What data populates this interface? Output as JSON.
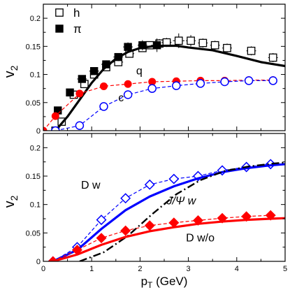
{
  "chart_data": [
    {
      "type": "scatter",
      "panel": "top",
      "xlim": [
        0,
        5
      ],
      "ylim": [
        0,
        0.225
      ],
      "x_ticks": [
        0,
        1,
        2,
        3,
        4,
        5
      ],
      "y_ticks": [
        0,
        0.05,
        0.1,
        0.15,
        0.2
      ],
      "y_tick_labels": [
        "0",
        "0.05",
        "0.1",
        "0.15",
        "0.2"
      ],
      "ylabel_main": "v",
      "ylabel_sub": "2",
      "grid": false,
      "legend_position": "top-left",
      "legend": [
        {
          "label": "h",
          "marker": "open-square"
        },
        {
          "label": "π",
          "marker": "filled-square"
        }
      ],
      "annotations": [
        {
          "text": "q",
          "x": 1.92,
          "y": 0.1
        },
        {
          "text": "c",
          "x": 1.55,
          "y": 0.052
        }
      ],
      "series": [
        {
          "name": "h",
          "style": "points",
          "marker": "open-square",
          "color": "#000000",
          "points": [
            {
              "x": 0.25,
              "y": 0.0,
              "ex": 0.05,
              "ey": 0.002
            },
            {
              "x": 0.38,
              "y": 0.016,
              "ex": 0.05,
              "ey": 0.003
            },
            {
              "x": 0.63,
              "y": 0.064,
              "ex": 0.07,
              "ey": 0.005
            },
            {
              "x": 0.85,
              "y": 0.083,
              "ex": 0.07,
              "ey": 0.005
            },
            {
              "x": 1.05,
              "y": 0.1,
              "ex": 0.08,
              "ey": 0.006
            },
            {
              "x": 1.3,
              "y": 0.113,
              "ex": 0.08,
              "ey": 0.006
            },
            {
              "x": 1.55,
              "y": 0.122,
              "ex": 0.1,
              "ey": 0.006
            },
            {
              "x": 1.78,
              "y": 0.137,
              "ex": 0.1,
              "ey": 0.006
            },
            {
              "x": 2.05,
              "y": 0.147,
              "ex": 0.1,
              "ey": 0.007
            },
            {
              "x": 2.2,
              "y": 0.152,
              "ex": 0.1,
              "ey": 0.007
            },
            {
              "x": 2.4,
              "y": 0.155,
              "ex": 0.1,
              "ey": 0.008
            },
            {
              "x": 2.55,
              "y": 0.157,
              "ex": 0.1,
              "ey": 0.008
            },
            {
              "x": 2.8,
              "y": 0.16,
              "ex": 0.12,
              "ey": 0.013
            },
            {
              "x": 3.05,
              "y": 0.16,
              "ex": 0.1,
              "ey": 0.01
            },
            {
              "x": 3.3,
              "y": 0.156,
              "ex": 0.1,
              "ey": 0.008
            },
            {
              "x": 3.55,
              "y": 0.152,
              "ex": 0.1,
              "ey": 0.008
            },
            {
              "x": 3.8,
              "y": 0.147,
              "ex": 0.1,
              "ey": 0.008
            },
            {
              "x": 4.3,
              "y": 0.142,
              "ex": 0.1,
              "ey": 0.008
            },
            {
              "x": 4.75,
              "y": 0.13,
              "ex": 0.1,
              "ey": 0.008
            }
          ]
        },
        {
          "name": "π",
          "style": "points",
          "marker": "filled-square",
          "color": "#000000",
          "points": [
            {
              "x": 0.3,
              "y": 0.036,
              "ex": 0.08,
              "ey": 0.004
            },
            {
              "x": 0.55,
              "y": 0.068,
              "ex": 0.08,
              "ey": 0.005
            },
            {
              "x": 0.8,
              "y": 0.092,
              "ex": 0.1,
              "ey": 0.006
            },
            {
              "x": 1.05,
              "y": 0.106,
              "ex": 0.1,
              "ey": 0.006
            },
            {
              "x": 1.3,
              "y": 0.118,
              "ex": 0.1,
              "ey": 0.007
            },
            {
              "x": 1.55,
              "y": 0.131,
              "ex": 0.1,
              "ey": 0.007
            },
            {
              "x": 1.75,
              "y": 0.149,
              "ex": 0.1,
              "ey": 0.008
            },
            {
              "x": 2.05,
              "y": 0.152,
              "ex": 0.1,
              "ey": 0.009
            },
            {
              "x": 2.35,
              "y": 0.152,
              "ex": 0.12,
              "ey": 0.012
            }
          ]
        },
        {
          "name": "",
          "style": "solid-line",
          "color": "#000000",
          "width": 3.2,
          "points": [
            {
              "x": 0.25,
              "y": 0.0
            },
            {
              "x": 0.5,
              "y": 0.025
            },
            {
              "x": 0.75,
              "y": 0.055
            },
            {
              "x": 1.0,
              "y": 0.085
            },
            {
              "x": 1.25,
              "y": 0.11
            },
            {
              "x": 1.5,
              "y": 0.128
            },
            {
              "x": 1.75,
              "y": 0.14
            },
            {
              "x": 2.0,
              "y": 0.147
            },
            {
              "x": 2.25,
              "y": 0.15
            },
            {
              "x": 2.5,
              "y": 0.151
            },
            {
              "x": 2.75,
              "y": 0.151
            },
            {
              "x": 3.0,
              "y": 0.148
            },
            {
              "x": 3.5,
              "y": 0.143
            },
            {
              "x": 4.0,
              "y": 0.133
            },
            {
              "x": 4.5,
              "y": 0.122
            },
            {
              "x": 5.0,
              "y": 0.115
            }
          ]
        },
        {
          "name": "q",
          "style": "dashed-line-markers",
          "marker": "filled-circle",
          "color": "#ff0000",
          "points": [
            {
              "x": 0.0,
              "y": 0.0
            },
            {
              "x": 0.25,
              "y": 0.026
            },
            {
              "x": 0.75,
              "y": 0.066
            },
            {
              "x": 1.25,
              "y": 0.079
            },
            {
              "x": 1.75,
              "y": 0.083
            },
            {
              "x": 2.25,
              "y": 0.087
            },
            {
              "x": 2.75,
              "y": 0.088
            },
            {
              "x": 3.25,
              "y": 0.089
            },
            {
              "x": 3.75,
              "y": 0.089
            },
            {
              "x": 4.25,
              "y": 0.09
            },
            {
              "x": 4.75,
              "y": 0.09
            }
          ]
        },
        {
          "name": "c",
          "style": "dashed-line-markers",
          "marker": "open-circle",
          "color": "#0000ff",
          "points": [
            {
              "x": 0.25,
              "y": 0.0
            },
            {
              "x": 0.75,
              "y": 0.009
            },
            {
              "x": 1.25,
              "y": 0.043
            },
            {
              "x": 1.75,
              "y": 0.064
            },
            {
              "x": 2.25,
              "y": 0.075
            },
            {
              "x": 2.75,
              "y": 0.08
            },
            {
              "x": 3.25,
              "y": 0.084
            },
            {
              "x": 3.75,
              "y": 0.087
            },
            {
              "x": 4.25,
              "y": 0.089
            },
            {
              "x": 4.75,
              "y": 0.089
            }
          ]
        }
      ]
    },
    {
      "type": "line",
      "panel": "bottom",
      "xlim": [
        0,
        5
      ],
      "ylim": [
        0,
        0.225
      ],
      "x_ticks": [
        0,
        1,
        2,
        3,
        4,
        5
      ],
      "x_tick_labels": [
        "0",
        "1",
        "2",
        "3",
        "4",
        "5"
      ],
      "y_ticks": [
        0,
        0.05,
        0.1,
        0.15,
        0.2
      ],
      "y_tick_labels": [
        "0",
        "0.05",
        "0.1",
        "0.15",
        "0.2"
      ],
      "ylabel_main": "v",
      "ylabel_sub": "2",
      "xlabel_main": "p",
      "xlabel_sub": "T",
      "xlabel_unit": " (GeV)",
      "grid": false,
      "annotations": [
        {
          "text": "D w",
          "x": 0.78,
          "y": 0.128
        },
        {
          "text": "J/Ψ w",
          "x": 2.55,
          "y": 0.1
        },
        {
          "text": "D w/o",
          "x": 2.95,
          "y": 0.035
        }
      ],
      "series": [
        {
          "name": "",
          "style": "dashed-line-markers",
          "marker": "open-diamond",
          "color": "#0000ff",
          "points": [
            {
              "x": 0.2,
              "y": 0.0
            },
            {
              "x": 0.7,
              "y": 0.025
            },
            {
              "x": 1.2,
              "y": 0.073
            },
            {
              "x": 1.7,
              "y": 0.111
            },
            {
              "x": 2.2,
              "y": 0.135
            },
            {
              "x": 2.7,
              "y": 0.145
            },
            {
              "x": 3.2,
              "y": 0.15
            },
            {
              "x": 3.7,
              "y": 0.16
            },
            {
              "x": 4.2,
              "y": 0.166
            },
            {
              "x": 4.7,
              "y": 0.171
            }
          ]
        },
        {
          "name": "",
          "style": "solid-line",
          "color": "#0000ff",
          "width": 3.2,
          "points": [
            {
              "x": 0.2,
              "y": 0.0
            },
            {
              "x": 0.7,
              "y": 0.02
            },
            {
              "x": 1.2,
              "y": 0.057
            },
            {
              "x": 1.7,
              "y": 0.09
            },
            {
              "x": 2.2,
              "y": 0.114
            },
            {
              "x": 2.7,
              "y": 0.132
            },
            {
              "x": 3.2,
              "y": 0.146
            },
            {
              "x": 3.7,
              "y": 0.157
            },
            {
              "x": 4.2,
              "y": 0.164
            },
            {
              "x": 4.7,
              "y": 0.169
            },
            {
              "x": 5.0,
              "y": 0.171
            }
          ]
        },
        {
          "name": "",
          "style": "dashdot-line",
          "color": "#000000",
          "width": 2.4,
          "points": [
            {
              "x": 0.75,
              "y": 0.0
            },
            {
              "x": 1.25,
              "y": 0.016
            },
            {
              "x": 1.75,
              "y": 0.045
            },
            {
              "x": 2.25,
              "y": 0.083
            },
            {
              "x": 2.75,
              "y": 0.118
            },
            {
              "x": 3.25,
              "y": 0.143
            },
            {
              "x": 3.75,
              "y": 0.159
            },
            {
              "x": 4.25,
              "y": 0.167
            },
            {
              "x": 4.75,
              "y": 0.172
            },
            {
              "x": 5.0,
              "y": 0.174
            }
          ]
        },
        {
          "name": "",
          "style": "dashed-line-markers",
          "marker": "filled-diamond",
          "color": "#ff0000",
          "points": [
            {
              "x": 0.2,
              "y": 0.0
            },
            {
              "x": 0.7,
              "y": 0.02
            },
            {
              "x": 1.2,
              "y": 0.041
            },
            {
              "x": 1.7,
              "y": 0.054
            },
            {
              "x": 2.2,
              "y": 0.063
            },
            {
              "x": 2.7,
              "y": 0.068
            },
            {
              "x": 3.2,
              "y": 0.072
            },
            {
              "x": 3.7,
              "y": 0.076
            },
            {
              "x": 4.2,
              "y": 0.079
            },
            {
              "x": 4.7,
              "y": 0.081
            }
          ]
        },
        {
          "name": "",
          "style": "solid-line",
          "color": "#ff0000",
          "width": 3.2,
          "points": [
            {
              "x": 0.2,
              "y": 0.0
            },
            {
              "x": 0.7,
              "y": 0.012
            },
            {
              "x": 1.2,
              "y": 0.029
            },
            {
              "x": 1.7,
              "y": 0.043
            },
            {
              "x": 2.2,
              "y": 0.053
            },
            {
              "x": 2.7,
              "y": 0.06
            },
            {
              "x": 3.2,
              "y": 0.066
            },
            {
              "x": 3.7,
              "y": 0.07
            },
            {
              "x": 4.2,
              "y": 0.073
            },
            {
              "x": 4.7,
              "y": 0.075
            },
            {
              "x": 5.0,
              "y": 0.076
            }
          ]
        }
      ]
    }
  ]
}
